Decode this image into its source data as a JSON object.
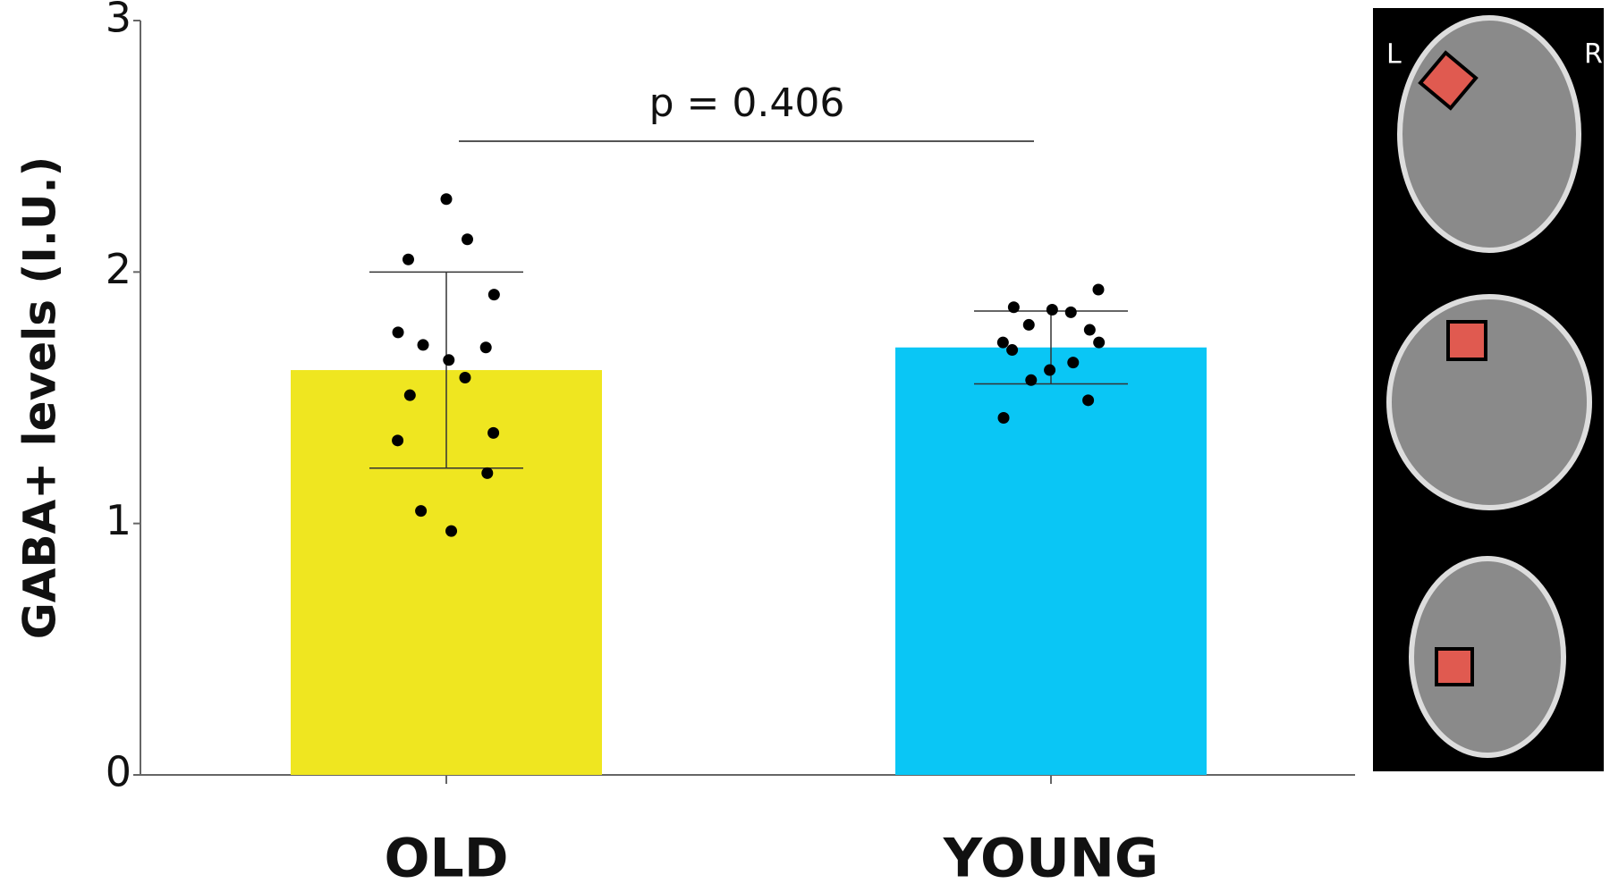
{
  "chart_data": {
    "type": "bar",
    "y_label": "GABA+ levels (I.U.)",
    "categories": [
      "OLD",
      "YOUNG"
    ],
    "values": [
      1.61,
      1.7
    ],
    "errors": [
      0.39,
      0.145
    ],
    "colors": [
      "#efe620",
      "#0ac6f5"
    ],
    "points": [
      [
        2.29,
        2.13,
        2.05,
        1.91,
        1.76,
        1.7,
        1.71,
        1.65,
        1.58,
        1.51,
        1.36,
        1.33,
        1.2,
        1.05,
        0.97
      ],
      [
        1.93,
        1.86,
        1.84,
        1.85,
        1.79,
        1.77,
        1.72,
        1.72,
        1.69,
        1.64,
        1.61,
        1.57,
        1.49,
        1.42
      ]
    ],
    "annotation": "p = 0.406",
    "ylim": [
      0,
      3
    ],
    "yticks": [
      0,
      1,
      2,
      3
    ]
  },
  "brain_panel": {
    "left_label": "L",
    "right_label": "R"
  }
}
